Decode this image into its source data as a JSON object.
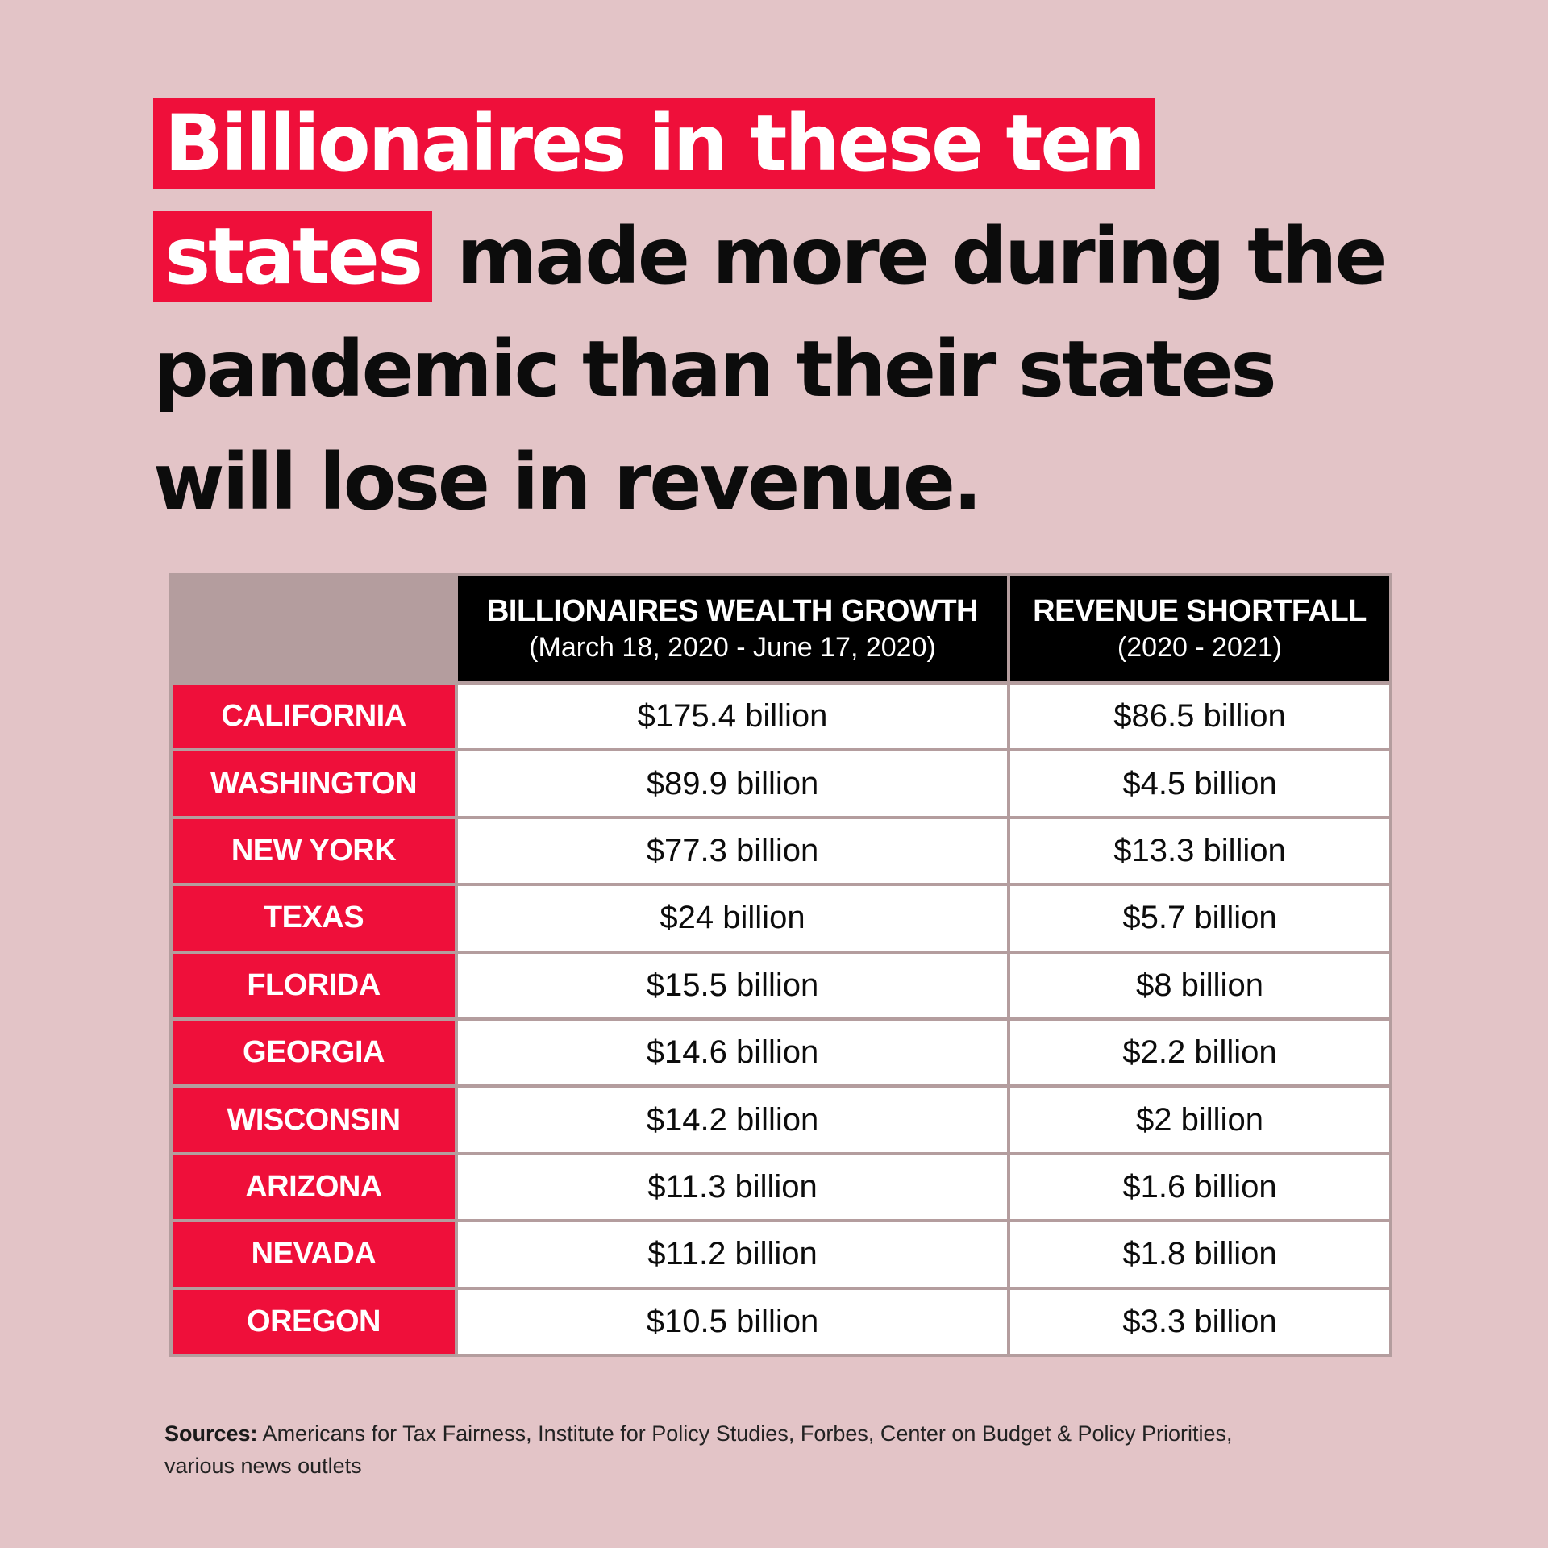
{
  "headline": {
    "highlighted": "Billionaires in these ten states",
    "rest": " made more during the pandemic than their states will lose in revenue."
  },
  "colors": {
    "background": "#e3c4c7",
    "accent_red": "#ef0f3a",
    "header_black": "#000000",
    "grid": "#b49d9e"
  },
  "chart_data": {
    "type": "table",
    "title": "Billionaires in these ten states made more during the pandemic than their states will lose in revenue.",
    "columns": [
      {
        "title": "BILLIONAIRES WEALTH GROWTH",
        "subtitle": "(March 18, 2020 - June 17, 2020)"
      },
      {
        "title": "REVENUE SHORTFALL",
        "subtitle": "(2020 - 2021)"
      }
    ],
    "rows": [
      {
        "state": "CALIFORNIA",
        "wealth_growth": "$175.4 billion",
        "revenue_shortfall": "$86.5 billion"
      },
      {
        "state": "WASHINGTON",
        "wealth_growth": "$89.9 billion",
        "revenue_shortfall": "$4.5 billion"
      },
      {
        "state": "NEW YORK",
        "wealth_growth": "$77.3 billion",
        "revenue_shortfall": "$13.3 billion"
      },
      {
        "state": "TEXAS",
        "wealth_growth": "$24 billion",
        "revenue_shortfall": "$5.7 billion"
      },
      {
        "state": "FLORIDA",
        "wealth_growth": "$15.5 billion",
        "revenue_shortfall": "$8 billion"
      },
      {
        "state": "GEORGIA",
        "wealth_growth": "$14.6 billion",
        "revenue_shortfall": "$2.2 billion"
      },
      {
        "state": "WISCONSIN",
        "wealth_growth": "$14.2 billion",
        "revenue_shortfall": "$2 billion"
      },
      {
        "state": "ARIZONA",
        "wealth_growth": "$11.3 billion",
        "revenue_shortfall": "$1.6 billion"
      },
      {
        "state": "NEVADA",
        "wealth_growth": "$11.2 billion",
        "revenue_shortfall": "$1.8 billion"
      },
      {
        "state": "OREGON",
        "wealth_growth": "$10.5 billion",
        "revenue_shortfall": "$3.3 billion"
      }
    ]
  },
  "sources": {
    "label": "Sources:",
    "text": " Americans for Tax Fairness, Institute for Policy Studies, Forbes, Center on Budget & Policy Priorities, various news outlets"
  }
}
